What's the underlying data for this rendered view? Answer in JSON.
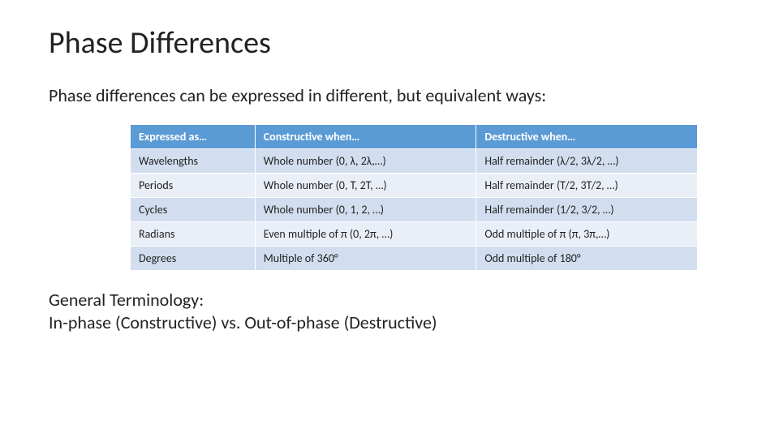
{
  "slide": {
    "title": "Phase Differences",
    "intro": "Phase differences can be expressed in different, but equivalent ways:",
    "terminology_line1": "General Terminology:",
    "terminology_line2": "In-phase (Constructive) vs. Out-of-phase (Destructive)"
  },
  "table": {
    "header_bg": "#5b9bd5",
    "header_fg": "#ffffff",
    "row_odd_bg": "#d2deef",
    "row_even_bg": "#eaeff7",
    "border_color": "#ffffff",
    "font_size_pt": 11,
    "columns": [
      {
        "label": "Expressed as…",
        "width_pct": 22
      },
      {
        "label": "Constructive when…",
        "width_pct": 39
      },
      {
        "label": "Destructive when…",
        "width_pct": 39
      }
    ],
    "rows": [
      {
        "expr": "Wavelengths",
        "con": "Whole number (0, λ, 2λ,…)",
        "des": "Half remainder (λ/2, 3λ/2, …)"
      },
      {
        "expr": "Periods",
        "con": "Whole number (0, T, 2T, …)",
        "des": "Half remainder (T/2, 3T/2, …)"
      },
      {
        "expr": "Cycles",
        "con": "Whole number (0, 1, 2, …)",
        "des": "Half remainder (1/2, 3/2, …)"
      },
      {
        "expr": "Radians",
        "con": "Even multiple of π (0, 2π, …)",
        "des": "Odd multiple of π (π, 3π,…)"
      },
      {
        "expr": "Degrees",
        "con": "Multiple of 360°",
        "des": "Odd multiple of 180°"
      }
    ]
  }
}
